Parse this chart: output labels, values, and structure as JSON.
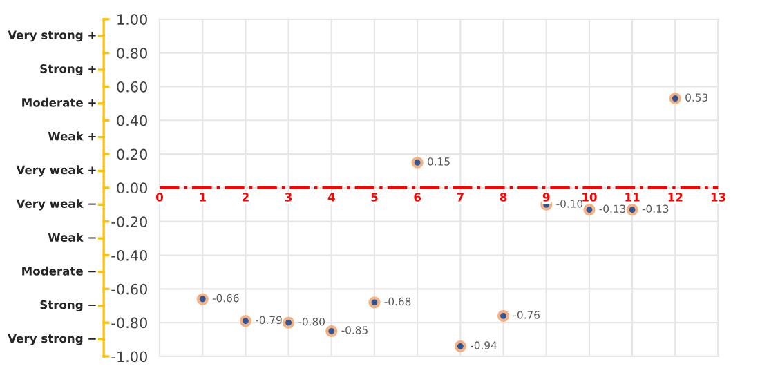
{
  "chart_data": {
    "type": "scatter",
    "x": [
      1,
      2,
      3,
      4,
      5,
      6,
      7,
      8,
      9,
      10,
      11,
      12
    ],
    "values": [
      -0.66,
      -0.79,
      -0.8,
      -0.85,
      -0.68,
      0.15,
      -0.94,
      -0.76,
      -0.1,
      -0.13,
      -0.13,
      0.53
    ],
    "value_labels": [
      "-0.66",
      "-0.79",
      "-0.80",
      "-0.85",
      "-0.68",
      "0.15",
      "-0.94",
      "-0.76",
      "-0.10",
      "-0.13",
      "-0.13",
      "0.53"
    ],
    "color": "#2f5597",
    "marker": "circle",
    "grid": true,
    "xlim": [
      0,
      13
    ],
    "xticks": [
      0,
      1,
      2,
      3,
      4,
      5,
      6,
      7,
      8,
      9,
      10,
      11,
      12,
      13
    ],
    "ylim": [
      -1,
      1
    ],
    "yticks": [
      {
        "value": 1,
        "label": "1.00"
      },
      {
        "value": 0.8,
        "label": "0.80"
      },
      {
        "value": 0.6,
        "label": "0.60"
      },
      {
        "value": 0.4,
        "label": "0.40"
      },
      {
        "value": 0.2,
        "label": "0.20"
      },
      {
        "value": 0,
        "label": "0.00"
      },
      {
        "value": -0.2,
        "label": "-0.20"
      },
      {
        "value": -0.4,
        "label": "-0.40"
      },
      {
        "value": -0.6,
        "label": "-0.60"
      },
      {
        "value": -0.8,
        "label": "-0.80"
      },
      {
        "value": -1,
        "label": "-1.00"
      }
    ],
    "ref_lines": [
      {
        "axis": "y",
        "value": 0,
        "color": "#ff0000",
        "line_style": "dashdot"
      }
    ],
    "annotations": [
      "Very strong +",
      "Strong +",
      "Moderate +",
      "Weak +",
      "Very weak +",
      "Very weak −",
      "Weak −",
      "Moderate −",
      "Strong −",
      "Very strong −"
    ]
  }
}
